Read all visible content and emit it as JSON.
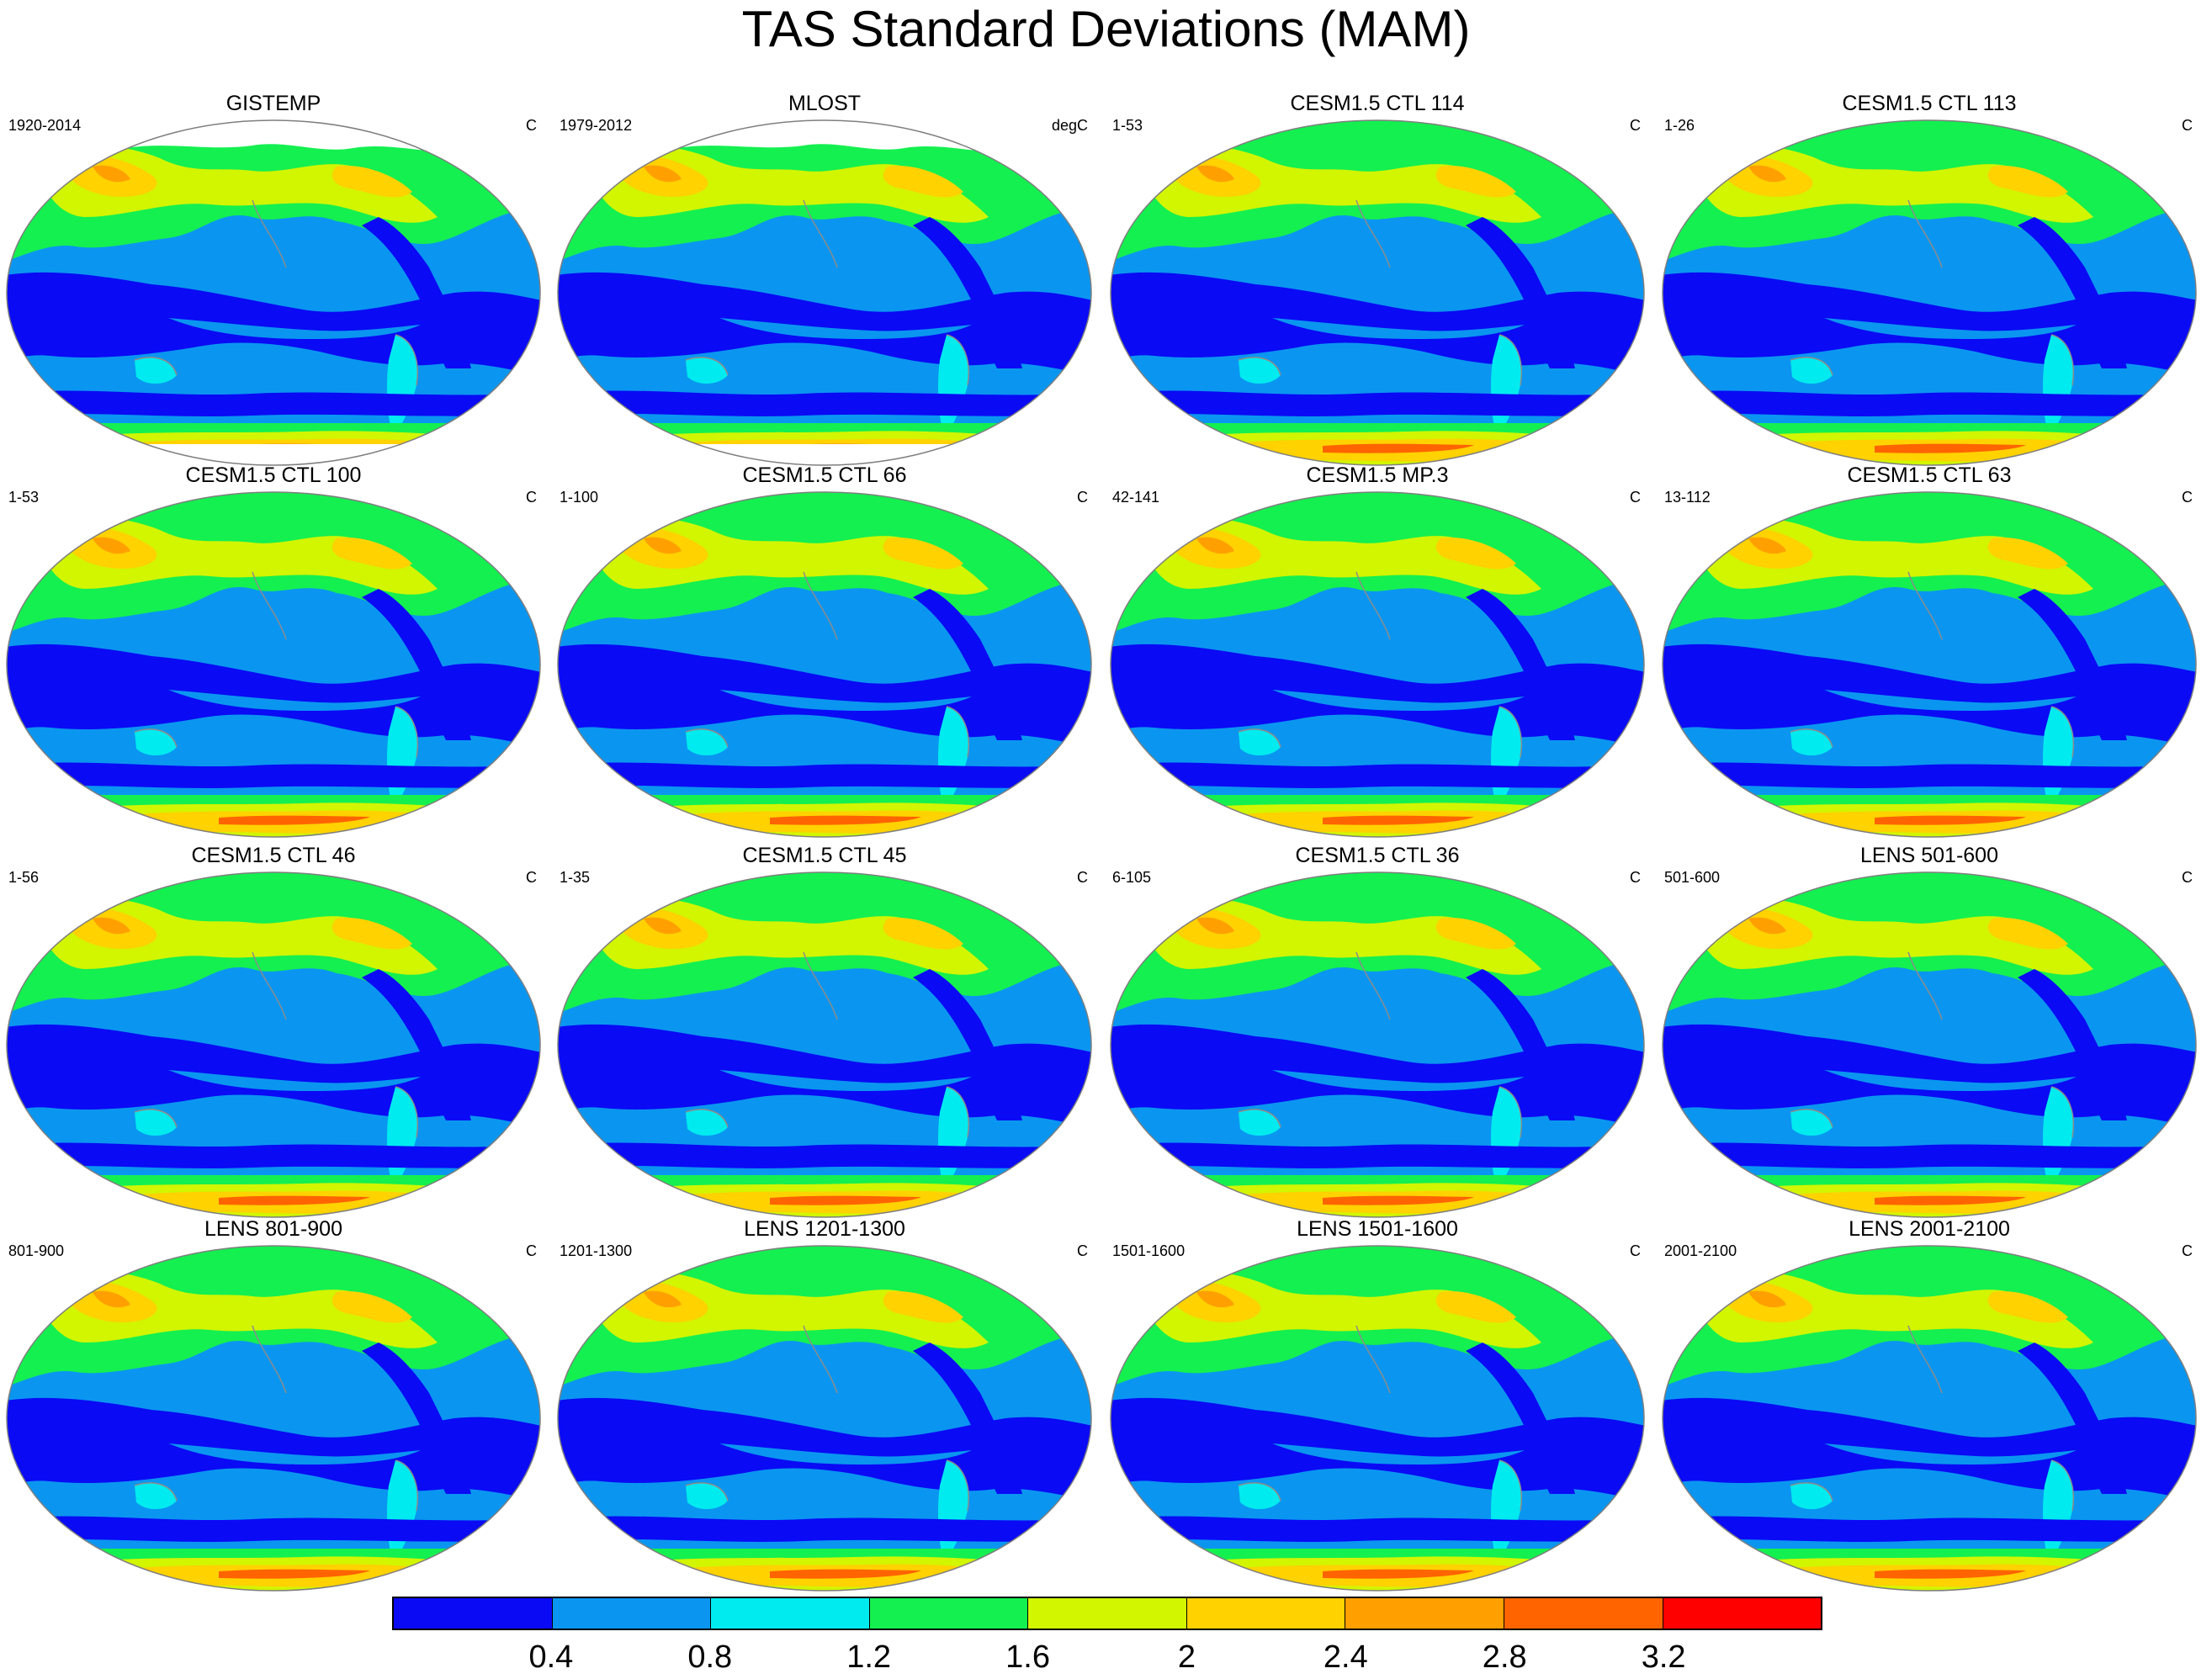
{
  "title": "TAS Standard Deviations (MAM)",
  "panels": [
    {
      "title": "GISTEMP",
      "years": "1920-2014",
      "units": "C",
      "missing_north": true,
      "missing_south": true
    },
    {
      "title": "MLOST",
      "years": "1979-2012",
      "units": "degC",
      "missing_north": true,
      "missing_south": true
    },
    {
      "title": "CESM1.5 CTL 114",
      "years": "1-53",
      "units": "C"
    },
    {
      "title": "CESM1.5 CTL 113",
      "years": "1-26",
      "units": "C"
    },
    {
      "title": "CESM1.5 CTL 100",
      "years": "1-53",
      "units": "C"
    },
    {
      "title": "CESM1.5 CTL 66",
      "years": "1-100",
      "units": "C"
    },
    {
      "title": "CESM1.5 MP.3",
      "years": "42-141",
      "units": "C"
    },
    {
      "title": "CESM1.5 CTL 63",
      "years": "13-112",
      "units": "C"
    },
    {
      "title": "CESM1.5 CTL 46",
      "years": "1-56",
      "units": "C"
    },
    {
      "title": "CESM1.5 CTL 45",
      "years": "1-35",
      "units": "C"
    },
    {
      "title": "CESM1.5 CTL 36",
      "years": "6-105",
      "units": "C"
    },
    {
      "title": "LENS 501-600",
      "years": "501-600",
      "units": "C"
    },
    {
      "title": "LENS 801-900",
      "years": "801-900",
      "units": "C"
    },
    {
      "title": "LENS 1201-1300",
      "years": "1201-1300",
      "units": "C"
    },
    {
      "title": "LENS 1501-1600",
      "years": "1501-1600",
      "units": "C"
    },
    {
      "title": "LENS 2001-2100",
      "years": "2001-2100",
      "units": "C"
    }
  ],
  "colorbar": {
    "colors": [
      "#0a0af5",
      "#0a96f0",
      "#00ebf0",
      "#14f050",
      "#d2f500",
      "#ffd200",
      "#ffa000",
      "#ff6400",
      "#ff0000"
    ],
    "labels": [
      "0.4",
      "0.8",
      "1.2",
      "1.6",
      "2",
      "2.4",
      "2.8",
      "3.2"
    ]
  },
  "colors": {
    "land_outline": "#8c8c8c",
    "map_border": "#7f7f7f",
    "missing": "#ffffff"
  }
}
